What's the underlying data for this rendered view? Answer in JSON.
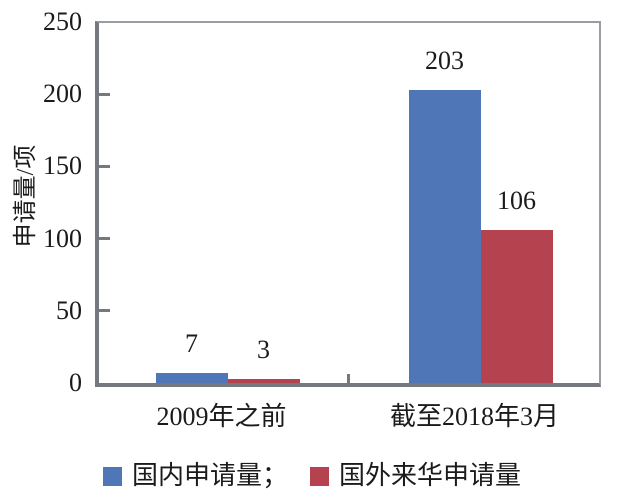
{
  "chart_data": {
    "type": "bar",
    "title": "",
    "categories": [
      "2009年之前",
      "截至2018年3月"
    ],
    "series": [
      {
        "name": "国内申请量",
        "color": "#4F76B6",
        "values": [
          7,
          203
        ]
      },
      {
        "name": "国外来华申请量",
        "color": "#B4424F",
        "values": [
          3,
          106
        ]
      }
    ],
    "legend_labels": [
      "国内申请量；",
      "国外来华申请量"
    ],
    "value_labels": [
      [
        "7",
        "3"
      ],
      [
        "203",
        "106"
      ]
    ],
    "xlabel": "",
    "ylabel": "申请量/项",
    "ylim": [
      0,
      250
    ],
    "yticks": [
      0,
      50,
      100,
      150,
      200,
      250
    ],
    "grid": false,
    "legend_position": "bottom"
  },
  "colors": {
    "axis": "#75787F",
    "frame": "#9A9DA3",
    "text": "#1B1B1B",
    "background": "#FFFFFF"
  }
}
